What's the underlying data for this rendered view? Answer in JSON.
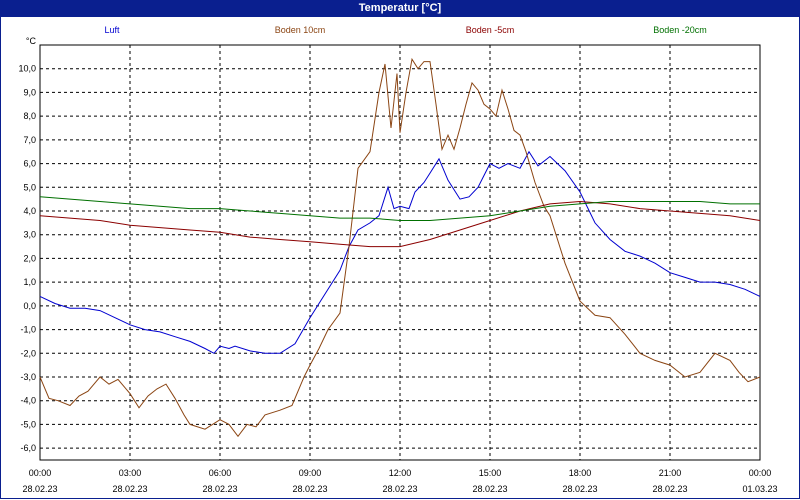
{
  "window": {
    "title": "Temperatur [°C]"
  },
  "chart_data": {
    "type": "line",
    "title": "Temperatur [°C]",
    "ylabel": "°C",
    "ylim": [
      -6.5,
      11
    ],
    "yticks": [
      10,
      9,
      8,
      7,
      6,
      5,
      4,
      3,
      2,
      1,
      0,
      -1,
      -2,
      -3,
      -4,
      -5,
      -6
    ],
    "ytick_labels": [
      "10,0",
      "9,0",
      "8,0",
      "7,0",
      "6,0",
      "5,0",
      "4,0",
      "3,0",
      "2,0",
      "1,0",
      "0,0",
      "-1,0",
      "-2,0",
      "-3,0",
      "-4,0",
      "-5,0",
      "-6,0"
    ],
    "xlim": [
      0,
      24
    ],
    "xticks": [
      0,
      3,
      6,
      9,
      12,
      15,
      18,
      21,
      24
    ],
    "xtick_time": [
      "00:00",
      "03:00",
      "06:00",
      "09:00",
      "12:00",
      "15:00",
      "18:00",
      "21:00",
      "00:00"
    ],
    "xtick_date": [
      "28.02.23",
      "28.02.23",
      "28.02.23",
      "28.02.23",
      "28.02.23",
      "28.02.23",
      "28.02.23",
      "28.02.23",
      "01.03.23"
    ],
    "grid": true,
    "legend_position": "top",
    "series": [
      {
        "name": "Luft",
        "color": "#0000d0",
        "x": [
          0,
          0.5,
          1,
          1.5,
          2,
          2.5,
          3,
          3.5,
          4,
          4.5,
          5,
          5.5,
          5.8,
          6,
          6.3,
          6.5,
          7,
          7.5,
          8,
          8.5,
          9,
          9.5,
          10,
          10.3,
          10.6,
          11,
          11.3,
          11.6,
          11.8,
          12,
          12.3,
          12.5,
          12.8,
          13,
          13.3,
          13.6,
          14,
          14.3,
          14.6,
          15,
          15.3,
          15.6,
          16,
          16.3,
          16.6,
          17,
          17.5,
          18,
          18.5,
          19,
          19.5,
          20,
          20.5,
          21,
          21.5,
          22,
          22.5,
          23,
          23.5,
          24
        ],
        "y": [
          0.4,
          0.1,
          -0.1,
          -0.1,
          -0.2,
          -0.5,
          -0.8,
          -1.0,
          -1.1,
          -1.3,
          -1.5,
          -1.8,
          -2.0,
          -1.7,
          -1.8,
          -1.7,
          -1.9,
          -2.0,
          -2.0,
          -1.6,
          -0.5,
          0.5,
          1.5,
          2.5,
          3.2,
          3.5,
          3.8,
          5.0,
          4.1,
          4.2,
          4.1,
          4.8,
          5.2,
          5.6,
          6.2,
          5.3,
          4.5,
          4.6,
          5.0,
          6.0,
          5.8,
          6.0,
          5.8,
          6.5,
          5.9,
          6.3,
          5.7,
          4.8,
          3.5,
          2.8,
          2.3,
          2.1,
          1.8,
          1.4,
          1.2,
          1.0,
          1.0,
          0.9,
          0.7,
          0.4
        ]
      },
      {
        "name": "Boden 10cm",
        "color": "#8b4513",
        "x": [
          0,
          0.3,
          0.6,
          1,
          1.3,
          1.6,
          2,
          2.3,
          2.6,
          3,
          3.3,
          3.6,
          3.9,
          4.2,
          4.5,
          4.8,
          5,
          5.5,
          6,
          6.3,
          6.6,
          6.9,
          7.2,
          7.5,
          8,
          8.4,
          8.8,
          9,
          9.3,
          9.6,
          10,
          10.3,
          10.6,
          11,
          11.3,
          11.5,
          11.7,
          11.9,
          12,
          12.2,
          12.4,
          12.6,
          12.8,
          13,
          13.2,
          13.4,
          13.6,
          13.8,
          14,
          14.2,
          14.4,
          14.6,
          14.8,
          15,
          15.2,
          15.4,
          15.6,
          15.8,
          16,
          16.2,
          16.5,
          16.8,
          17,
          17.5,
          18,
          18.5,
          19,
          19.5,
          20,
          20.5,
          21,
          21.5,
          22,
          22.5,
          23,
          23.3,
          23.6,
          24
        ],
        "y": [
          -3.0,
          -3.9,
          -4.0,
          -4.2,
          -3.8,
          -3.6,
          -3.0,
          -3.3,
          -3.1,
          -3.7,
          -4.3,
          -3.8,
          -3.5,
          -3.3,
          -3.9,
          -4.6,
          -5.0,
          -5.2,
          -4.8,
          -5.0,
          -5.5,
          -5.0,
          -5.1,
          -4.6,
          -4.4,
          -4.2,
          -3.0,
          -2.5,
          -1.8,
          -1.0,
          -0.3,
          2.5,
          5.8,
          6.5,
          9.0,
          10.2,
          7.5,
          9.8,
          7.3,
          9.0,
          10.4,
          10.0,
          10.3,
          10.3,
          8.5,
          6.6,
          7.2,
          6.6,
          7.5,
          8.5,
          9.4,
          9.1,
          8.5,
          8.3,
          8.0,
          9.1,
          8.3,
          7.4,
          7.2,
          6.5,
          5.2,
          4.2,
          3.8,
          1.8,
          0.2,
          -0.4,
          -0.5,
          -1.2,
          -2.0,
          -2.3,
          -2.5,
          -3.0,
          -2.8,
          -2.0,
          -2.3,
          -2.8,
          -3.2,
          -3.0
        ]
      },
      {
        "name": "Boden -5cm",
        "color": "#8b0000",
        "x": [
          0,
          1,
          2,
          3,
          4,
          5,
          6,
          7,
          8,
          9,
          10,
          11,
          12,
          13,
          14,
          15,
          16,
          17,
          18,
          19,
          20,
          21,
          22,
          23,
          24
        ],
        "y": [
          3.8,
          3.7,
          3.6,
          3.4,
          3.3,
          3.2,
          3.1,
          2.9,
          2.8,
          2.7,
          2.6,
          2.5,
          2.5,
          2.8,
          3.2,
          3.6,
          4.0,
          4.3,
          4.4,
          4.3,
          4.1,
          4.0,
          3.9,
          3.8,
          3.6
        ]
      },
      {
        "name": "Boden -20cm",
        "color": "#007000",
        "x": [
          0,
          1,
          2,
          3,
          4,
          5,
          6,
          7,
          8,
          9,
          10,
          11,
          12,
          13,
          14,
          15,
          16,
          17,
          18,
          19,
          20,
          21,
          22,
          23,
          24
        ],
        "y": [
          4.6,
          4.5,
          4.4,
          4.3,
          4.2,
          4.1,
          4.1,
          4.0,
          3.9,
          3.8,
          3.7,
          3.7,
          3.6,
          3.6,
          3.7,
          3.8,
          4.0,
          4.2,
          4.3,
          4.4,
          4.4,
          4.4,
          4.4,
          4.3,
          4.3
        ]
      }
    ]
  }
}
